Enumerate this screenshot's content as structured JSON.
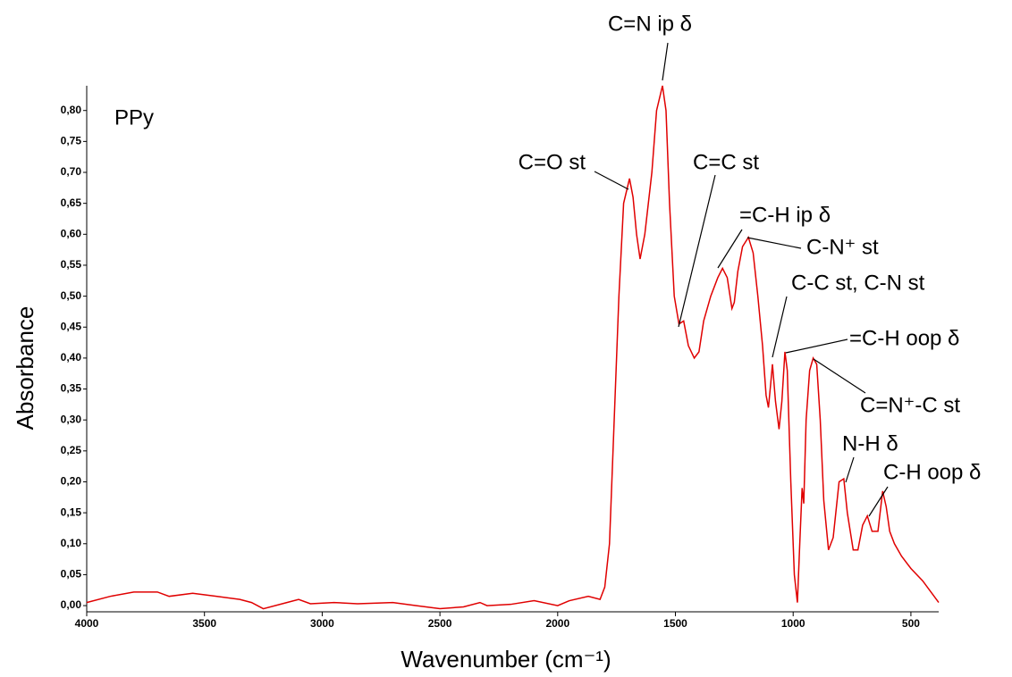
{
  "chart_data": {
    "type": "line",
    "x_label": "Wavenumber (cm⁻¹)",
    "y_label": "Absorbance",
    "x": [
      4000,
      3900,
      3800,
      3700,
      3650,
      3550,
      3450,
      3350,
      3300,
      3250,
      3150,
      3100,
      3050,
      2950,
      2850,
      2700,
      2600,
      2500,
      2400,
      2330,
      2300,
      2200,
      2100,
      2000,
      1950,
      1870,
      1820,
      1800,
      1780,
      1760,
      1740,
      1720,
      1695,
      1680,
      1665,
      1650,
      1630,
      1600,
      1580,
      1555,
      1540,
      1525,
      1505,
      1485,
      1465,
      1445,
      1420,
      1400,
      1380,
      1350,
      1320,
      1300,
      1280,
      1260,
      1250,
      1235,
      1215,
      1190,
      1170,
      1150,
      1130,
      1115,
      1105,
      1095,
      1088,
      1075,
      1060,
      1048,
      1035,
      1025,
      1010,
      995,
      982,
      972,
      962,
      955,
      945,
      930,
      915,
      900,
      885,
      870,
      850,
      830,
      805,
      785,
      770,
      745,
      725,
      705,
      685,
      665,
      640,
      620,
      605,
      590,
      570,
      540,
      500,
      450,
      382
    ],
    "series": [
      {
        "name": "PPy",
        "color": "#e00000",
        "values": [
          0.005,
          0.015,
          0.022,
          0.022,
          0.015,
          0.02,
          0.015,
          0.01,
          0.005,
          -0.005,
          0.005,
          0.01,
          0.003,
          0.005,
          0.003,
          0.005,
          0.0,
          -0.005,
          -0.002,
          0.005,
          0.0,
          0.002,
          0.008,
          0.0,
          0.008,
          0.015,
          0.01,
          0.03,
          0.1,
          0.3,
          0.5,
          0.65,
          0.69,
          0.66,
          0.6,
          0.56,
          0.6,
          0.7,
          0.8,
          0.84,
          0.8,
          0.65,
          0.5,
          0.455,
          0.46,
          0.42,
          0.4,
          0.41,
          0.46,
          0.5,
          0.53,
          0.545,
          0.53,
          0.48,
          0.49,
          0.54,
          0.58,
          0.595,
          0.57,
          0.5,
          0.42,
          0.34,
          0.32,
          0.36,
          0.39,
          0.33,
          0.285,
          0.33,
          0.41,
          0.38,
          0.2,
          0.05,
          0.005,
          0.1,
          0.19,
          0.165,
          0.3,
          0.38,
          0.4,
          0.39,
          0.3,
          0.17,
          0.09,
          0.11,
          0.2,
          0.205,
          0.15,
          0.09,
          0.09,
          0.13,
          0.145,
          0.12,
          0.12,
          0.185,
          0.16,
          0.12,
          0.1,
          0.08,
          0.06,
          0.04,
          0.005
        ]
      }
    ],
    "annotations": [
      "C=N ip δ",
      "C=O st",
      "C=C st",
      "=C-H ip δ",
      "C-N⁺ st",
      "C-C st, C-N st",
      "=C-H oop δ",
      "C=N⁺-C st",
      "N-H δ",
      "C-H oop δ"
    ],
    "xlim": [
      4000,
      382
    ],
    "ylim": [
      -0.01,
      0.84
    ],
    "xticks": [
      4000,
      3500,
      3000,
      2500,
      2000,
      1500,
      1000,
      500
    ],
    "yticks": [
      {
        "value": 0,
        "label": "0,00"
      },
      {
        "value": 0.05,
        "label": "0,05"
      },
      {
        "value": 0.1,
        "label": "0,10"
      },
      {
        "value": 0.15,
        "label": "0,15"
      },
      {
        "value": 0.2,
        "label": "0,20"
      },
      {
        "value": 0.25,
        "label": "0,25"
      },
      {
        "value": 0.3,
        "label": "0,30"
      },
      {
        "value": 0.35,
        "label": "0,35"
      },
      {
        "value": 0.4,
        "label": "0,40"
      },
      {
        "value": 0.45,
        "label": "0,45"
      },
      {
        "value": 0.5,
        "label": "0,50"
      },
      {
        "value": 0.55,
        "label": "0,55"
      },
      {
        "value": 0.6,
        "label": "0,60"
      },
      {
        "value": 0.65,
        "label": "0,65"
      },
      {
        "value": 0.7,
        "label": "0,70"
      },
      {
        "value": 0.75,
        "label": "0,75"
      },
      {
        "value": 0.8,
        "label": "0,80"
      }
    ],
    "grid": false
  }
}
